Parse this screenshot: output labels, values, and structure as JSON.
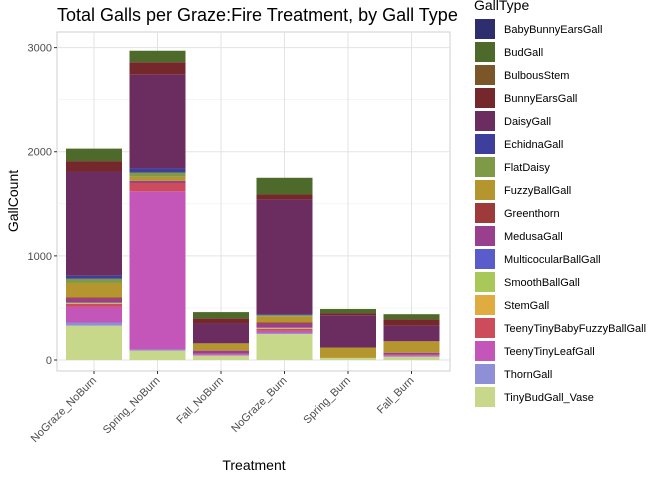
{
  "chart_data": {
    "type": "bar",
    "stacked": true,
    "title": "Total Galls per Graze:Fire Treatment, by Gall Type",
    "xlabel": "Treatment",
    "ylabel": "GallCount",
    "ylim": [
      0,
      3150
    ],
    "yticks": [
      0,
      1000,
      2000,
      3000
    ],
    "grid": true,
    "legend_title": "GallType",
    "legend_position": "right",
    "categories": [
      "NoGraze_NoBurn",
      "Spring_NoBurn",
      "Fall_NoBurn",
      "NoGraze_Burn",
      "Spring_Burn",
      "Fall_Burn"
    ],
    "series": [
      {
        "name": "TinyBudGall_Vase",
        "color": "#c8d88a",
        "values": [
          330,
          90,
          40,
          250,
          20,
          30
        ]
      },
      {
        "name": "ThornGall",
        "color": "#8e8fd6",
        "values": [
          30,
          10,
          5,
          10,
          0,
          5
        ]
      },
      {
        "name": "TeenyTinyLeafGall",
        "color": "#c356b8",
        "values": [
          150,
          1520,
          10,
          20,
          0,
          10
        ]
      },
      {
        "name": "TeenyTinyBabyFuzzyBallGall",
        "color": "#cc4c5c",
        "values": [
          30,
          80,
          5,
          20,
          0,
          5
        ]
      },
      {
        "name": "StemGall",
        "color": "#e0ac40",
        "values": [
          0,
          0,
          0,
          0,
          0,
          0
        ]
      },
      {
        "name": "SmoothBallGall",
        "color": "#a8c85a",
        "values": [
          10,
          0,
          0,
          10,
          0,
          0
        ]
      },
      {
        "name": "MulticocularBallGall",
        "color": "#5a5ccc",
        "values": [
          0,
          0,
          0,
          0,
          0,
          0
        ]
      },
      {
        "name": "MedusaGall",
        "color": "#9a3f8e",
        "values": [
          40,
          20,
          30,
          40,
          0,
          20
        ]
      },
      {
        "name": "Greenthorn",
        "color": "#9e3a3a",
        "values": [
          10,
          0,
          0,
          10,
          0,
          0
        ]
      },
      {
        "name": "FuzzyBallGall",
        "color": "#b5962e",
        "values": [
          140,
          40,
          70,
          60,
          100,
          110
        ]
      },
      {
        "name": "FlatDaisy",
        "color": "#7e9a46",
        "values": [
          40,
          40,
          0,
          10,
          0,
          0
        ]
      },
      {
        "name": "EchidnaGall",
        "color": "#3e3e9c",
        "values": [
          30,
          40,
          0,
          10,
          0,
          0
        ]
      },
      {
        "name": "DaisyGall",
        "color": "#6b2d60",
        "values": [
          1000,
          900,
          190,
          1100,
          310,
          150
        ]
      },
      {
        "name": "BunnyEarsGall",
        "color": "#74282b",
        "values": [
          100,
          120,
          50,
          50,
          20,
          60
        ]
      },
      {
        "name": "BulbousStem",
        "color": "#7a5628",
        "values": [
          0,
          0,
          0,
          0,
          0,
          0
        ]
      },
      {
        "name": "BudGall",
        "color": "#4e6a2a",
        "values": [
          120,
          110,
          60,
          160,
          40,
          50
        ]
      },
      {
        "name": "BabyBunnyEarsGall",
        "color": "#2e2e6e",
        "values": [
          0,
          0,
          0,
          0,
          0,
          0
        ]
      }
    ]
  }
}
